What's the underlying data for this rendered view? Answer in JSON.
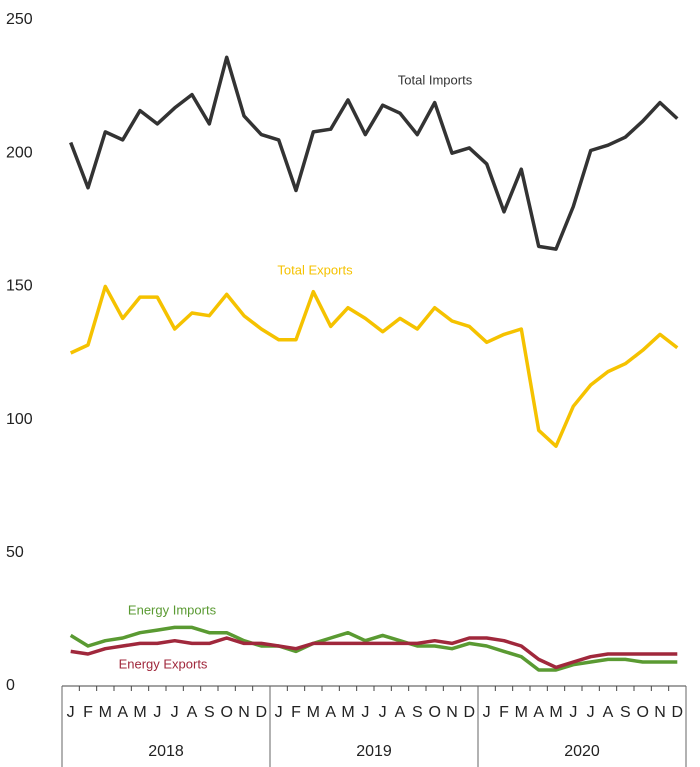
{
  "chart_data": {
    "type": "line",
    "categories": [
      "J",
      "F",
      "M",
      "A",
      "M",
      "J",
      "J",
      "A",
      "S",
      "O",
      "N",
      "D",
      "J",
      "F",
      "M",
      "A",
      "M",
      "J",
      "J",
      "A",
      "S",
      "O",
      "N",
      "D",
      "J",
      "F",
      "M",
      "A",
      "M",
      "J",
      "J",
      "A",
      "S",
      "O",
      "N",
      "D"
    ],
    "years": [
      "2018",
      "2019",
      "2020"
    ],
    "ylim": [
      0,
      250
    ],
    "yticks": [
      0,
      50,
      100,
      150,
      200,
      250
    ],
    "grid": false,
    "series": [
      {
        "name": "Total Imports",
        "color": "#333333",
        "values": [
          204,
          187,
          208,
          205,
          216,
          211,
          217,
          222,
          211,
          236,
          214,
          207,
          205,
          186,
          208,
          209,
          220,
          207,
          218,
          215,
          207,
          219,
          200,
          202,
          196,
          178,
          194,
          165,
          164,
          180,
          201,
          203,
          206,
          212,
          219,
          213
        ]
      },
      {
        "name": "Total Exports",
        "color": "#f5c200",
        "values": [
          125,
          128,
          150,
          138,
          146,
          146,
          134,
          140,
          139,
          147,
          139,
          134,
          130,
          130,
          148,
          135,
          142,
          138,
          133,
          138,
          134,
          142,
          137,
          135,
          129,
          132,
          134,
          96,
          90,
          105,
          113,
          118,
          121,
          126,
          132,
          127
        ]
      },
      {
        "name": "Energy Imports",
        "color": "#5a9a32",
        "values": [
          19,
          15,
          17,
          18,
          20,
          21,
          22,
          22,
          20,
          20,
          17,
          15,
          15,
          13,
          16,
          18,
          20,
          17,
          19,
          17,
          15,
          15,
          14,
          16,
          15,
          13,
          11,
          6,
          6,
          8,
          9,
          10,
          10,
          9,
          9,
          9
        ]
      },
      {
        "name": "Energy Exports",
        "color": "#a0283c",
        "values": [
          13,
          12,
          14,
          15,
          16,
          16,
          17,
          16,
          16,
          18,
          16,
          16,
          15,
          14,
          16,
          16,
          16,
          16,
          16,
          16,
          16,
          17,
          16,
          18,
          18,
          17,
          15,
          10,
          7,
          9,
          11,
          12,
          12,
          12,
          12,
          12
        ]
      }
    ]
  }
}
